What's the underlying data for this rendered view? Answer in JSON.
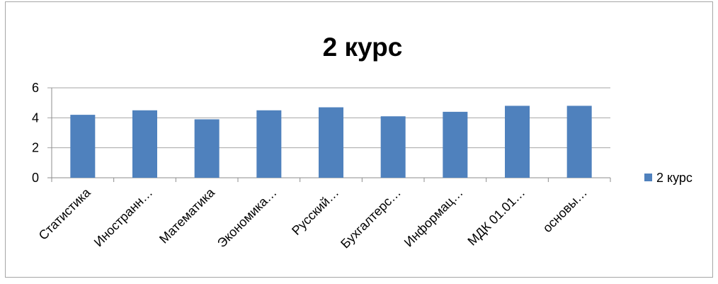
{
  "chart_data": {
    "type": "bar",
    "title": "2 курс",
    "categories": [
      "Статистика",
      "Иностранн…",
      "Математика",
      "Экономика…",
      "Русский…",
      "Бухгалтерс…",
      "Информац…",
      "МДК 01.01…",
      "основы…"
    ],
    "series": [
      {
        "name": "2 курс",
        "values": [
          4.2,
          4.5,
          3.9,
          4.5,
          4.7,
          4.1,
          4.4,
          4.8,
          4.8
        ],
        "color": "#4f81bd"
      }
    ],
    "ylim": [
      0,
      6
    ],
    "yticks": [
      0,
      2,
      4,
      6
    ],
    "grid": true,
    "legend_position": "right"
  }
}
